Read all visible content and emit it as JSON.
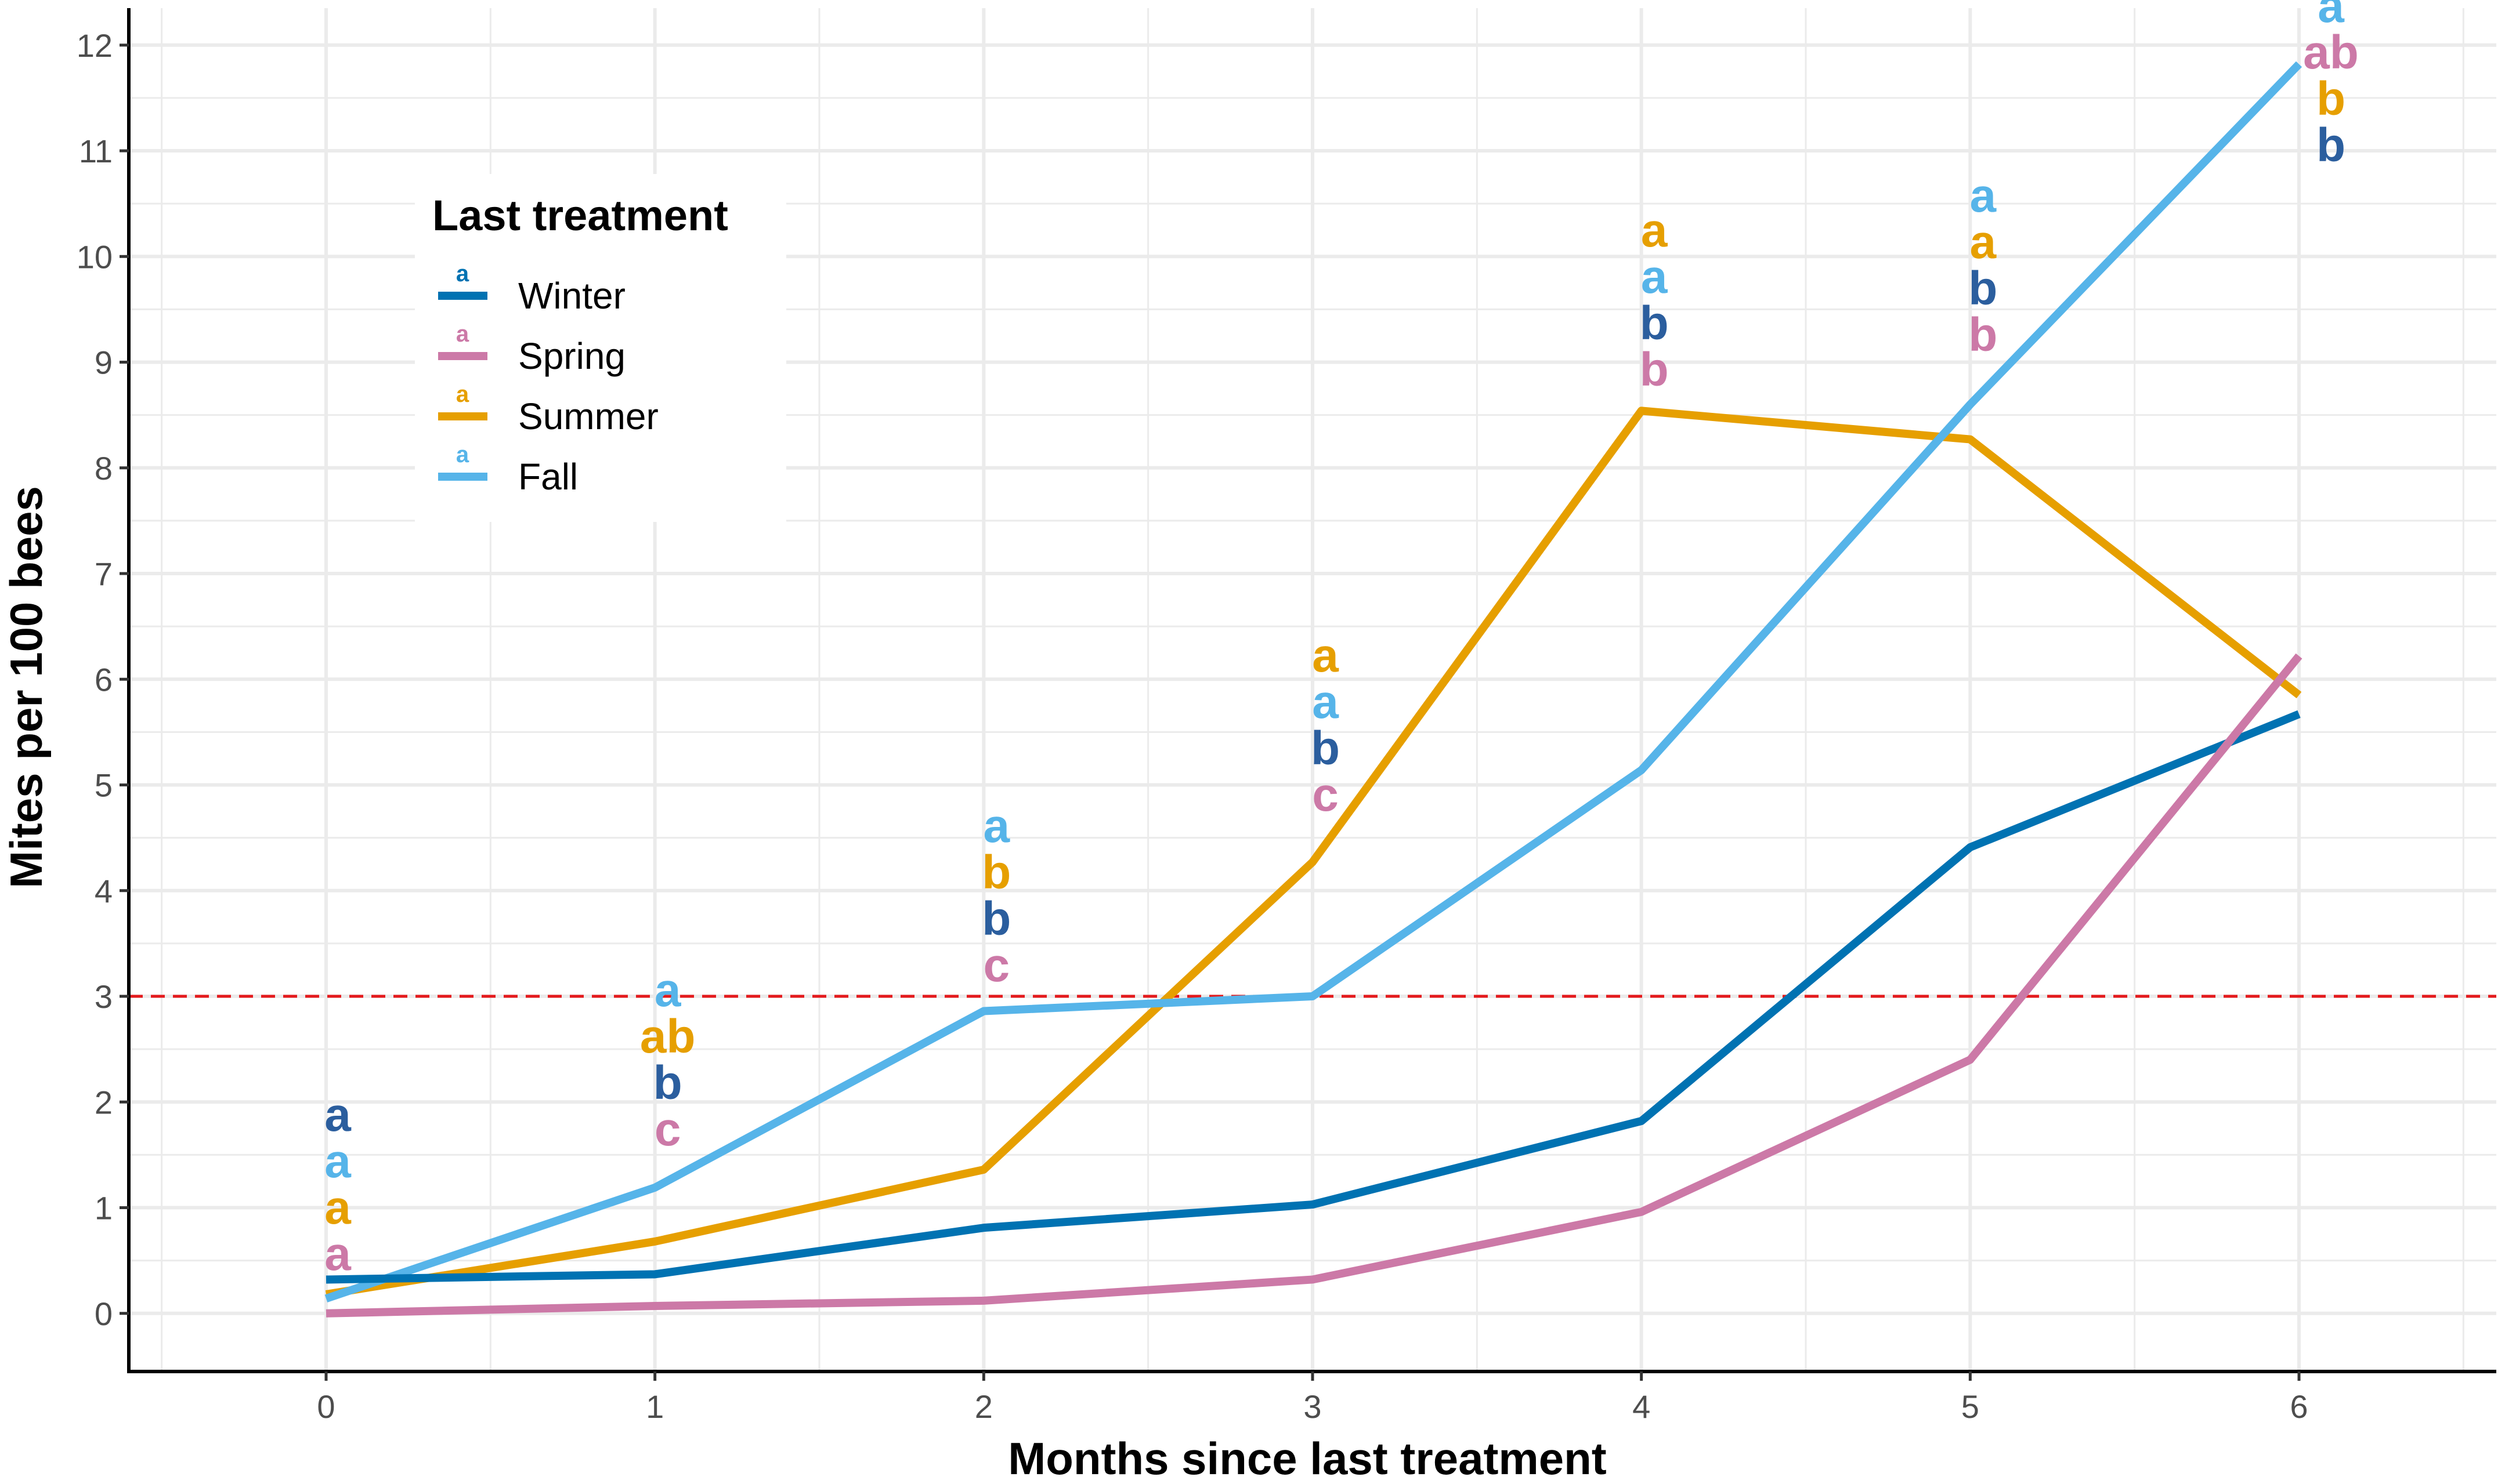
{
  "chart_data": {
    "type": "line",
    "title": "",
    "xlabel": "Months since last treatment",
    "ylabel": "Mites per 100 bees",
    "x": [
      0,
      1,
      2,
      3,
      4,
      5,
      6
    ],
    "xlim": [
      -0.6,
      6.6
    ],
    "ylim": [
      -0.55,
      12.35
    ],
    "xticks": [
      "0",
      "1",
      "2",
      "3",
      "4",
      "5",
      "6"
    ],
    "yticks": [
      "0",
      "1",
      "2",
      "3",
      "4",
      "5",
      "6",
      "7",
      "8",
      "9",
      "10",
      "11",
      "12"
    ],
    "threshold": {
      "value": 3,
      "color": "#e41a1c",
      "style": "dashed"
    },
    "legend": {
      "title": "Last treatment",
      "position": "top-left"
    },
    "series": [
      {
        "name": "Winter",
        "color": "#0072b2",
        "legend_letter": "a",
        "values": [
          0.32,
          0.37,
          0.81,
          1.03,
          1.82,
          4.41,
          5.67
        ]
      },
      {
        "name": "Spring",
        "color": "#cc79a7",
        "legend_letter": "a",
        "values": [
          0.0,
          0.07,
          0.12,
          0.32,
          0.96,
          2.4,
          6.22
        ]
      },
      {
        "name": "Summer",
        "color": "#e69f00",
        "legend_letter": "a",
        "values": [
          0.18,
          0.68,
          1.36,
          4.27,
          8.54,
          8.27,
          5.85
        ]
      },
      {
        "name": "Fall",
        "color": "#56b4e9",
        "legend_letter": "a",
        "values": [
          0.14,
          1.19,
          2.86,
          3.0,
          5.14,
          8.6,
          11.82
        ]
      }
    ],
    "significance_letters": [
      {
        "x": 0,
        "letters": [
          {
            "text": "a",
            "series": "Winter"
          },
          {
            "text": "a",
            "series": "Fall"
          },
          {
            "text": "a",
            "series": "Summer"
          },
          {
            "text": "a",
            "series": "Spring"
          }
        ]
      },
      {
        "x": 1,
        "letters": [
          {
            "text": "a",
            "series": "Fall"
          },
          {
            "text": "ab",
            "series": "Summer"
          },
          {
            "text": "b",
            "series": "Winter"
          },
          {
            "text": "c",
            "series": "Spring"
          }
        ]
      },
      {
        "x": 2,
        "letters": [
          {
            "text": "a",
            "series": "Fall"
          },
          {
            "text": "b",
            "series": "Summer"
          },
          {
            "text": "b",
            "series": "Winter"
          },
          {
            "text": "c",
            "series": "Spring"
          }
        ]
      },
      {
        "x": 3,
        "letters": [
          {
            "text": "a",
            "series": "Summer"
          },
          {
            "text": "a",
            "series": "Fall"
          },
          {
            "text": "b",
            "series": "Winter"
          },
          {
            "text": "c",
            "series": "Spring"
          }
        ]
      },
      {
        "x": 4,
        "letters": [
          {
            "text": "a",
            "series": "Summer"
          },
          {
            "text": "a",
            "series": "Fall"
          },
          {
            "text": "b",
            "series": "Winter"
          },
          {
            "text": "b",
            "series": "Spring"
          }
        ]
      },
      {
        "x": 5,
        "letters": [
          {
            "text": "a",
            "series": "Fall"
          },
          {
            "text": "a",
            "series": "Summer"
          },
          {
            "text": "b",
            "series": "Winter"
          },
          {
            "text": "b",
            "series": "Spring"
          }
        ]
      },
      {
        "x": 6,
        "letters": [
          {
            "text": "a",
            "series": "Fall"
          },
          {
            "text": "ab",
            "series": "Spring"
          },
          {
            "text": "b",
            "series": "Summer"
          },
          {
            "text": "b",
            "series": "Winter"
          }
        ]
      }
    ],
    "grid": true
  }
}
